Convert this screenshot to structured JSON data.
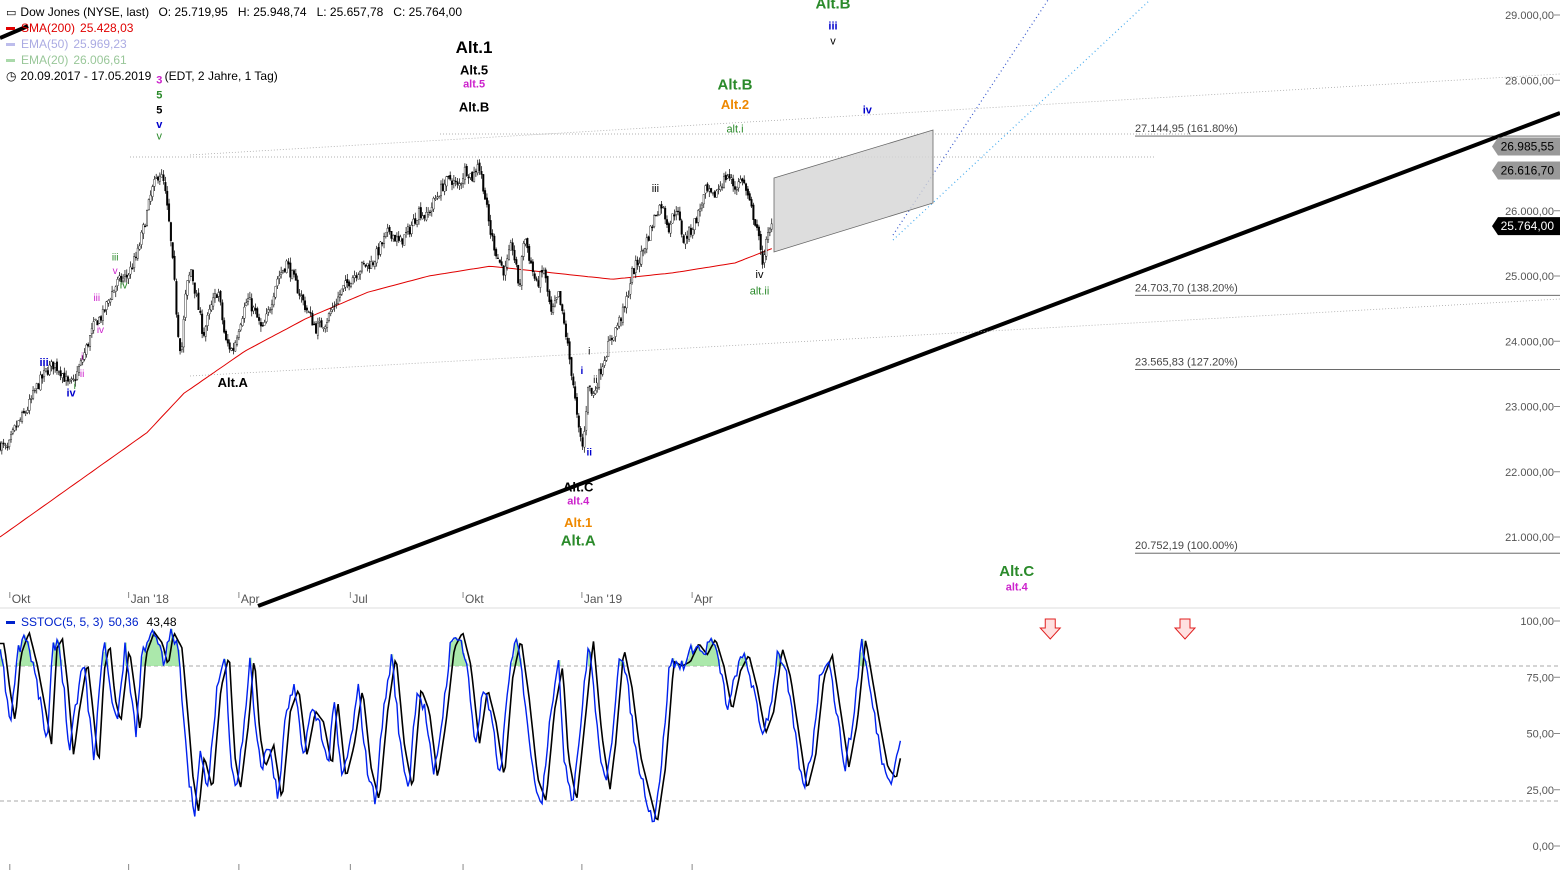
{
  "header": {
    "instrument": "Dow Jones (NYSE, last)",
    "ohlc": "O: 25.719,95   H: 25.948,74   L: 25.657,78   C: 25.764,00",
    "range": "20.09.2017 - 17.05.2019    (EDT, 2 Jahre, 1 Tag)",
    "indicators": [
      {
        "label": "SMA(200)",
        "value": "25.428,03",
        "color": "#e00000",
        "dim": false
      },
      {
        "label": "EMA(50)",
        "value": "25.969,23",
        "color": "#8888dd",
        "dim": true
      },
      {
        "label": "EMA(20)",
        "value": "26.006,61",
        "color": "#66bb66",
        "dim": true
      }
    ]
  },
  "price_axis": {
    "ticks": [
      {
        "v": 29000,
        "label": "29.000,00"
      },
      {
        "v": 28000,
        "label": "28.000,00"
      },
      {
        "v": 27000,
        "label": "27.000,00"
      },
      {
        "v": 26000,
        "label": "26.000,00"
      },
      {
        "v": 25000,
        "label": "25.000,00"
      },
      {
        "v": 24000,
        "label": "24.000,00"
      },
      {
        "v": 23000,
        "label": "23.000,00"
      },
      {
        "v": 22000,
        "label": "22.000,00"
      },
      {
        "v": 21000,
        "label": "21.000,00"
      }
    ],
    "badges": [
      {
        "v": 26985.55,
        "label": "26.985,55",
        "bg": "#999999",
        "fg": "#000000"
      },
      {
        "v": 26616.7,
        "label": "26.616,70",
        "bg": "#999999",
        "fg": "#000000"
      },
      {
        "v": 25764.0,
        "label": "25.764,00",
        "bg": "#000000",
        "fg": "#ffffff"
      }
    ]
  },
  "fibs": [
    {
      "v": 27144.95,
      "label": "27.144,95 (161.80%)"
    },
    {
      "v": 24703.7,
      "label": "24.703,70 (138.20%)"
    },
    {
      "v": 23565.83,
      "label": "23.565,83 (127.20%)"
    },
    {
      "v": 20752.19,
      "label": "20.752,19 (100.00%)"
    }
  ],
  "x_axis": {
    "labels": [
      {
        "day": 8,
        "label": "Okt"
      },
      {
        "day": 105,
        "label": "Jan '18"
      },
      {
        "day": 195,
        "label": "Apr"
      },
      {
        "day": 286,
        "label": "Jul"
      },
      {
        "day": 378,
        "label": "Okt"
      },
      {
        "day": 475,
        "label": "Jan '19"
      },
      {
        "day": 565,
        "label": "Apr"
      }
    ]
  },
  "oscillator": {
    "label": "SSTOC(5, 5, 3)",
    "value1": "50,36",
    "value2": "43,48",
    "ticks": [
      {
        "v": 100,
        "label": "100,00"
      },
      {
        "v": 75,
        "label": "75,00"
      },
      {
        "v": 50,
        "label": "50,00"
      },
      {
        "v": 25,
        "label": "25,00"
      },
      {
        "v": 0,
        "label": "0,00"
      }
    ],
    "overbought": 80,
    "oversold": 20
  },
  "waves": [
    {
      "day": 130,
      "v": 27950,
      "text": "3",
      "color": "#cc22cc",
      "size": 11,
      "bold": true
    },
    {
      "day": 130,
      "v": 27720,
      "text": "5",
      "color": "#2a8a2a",
      "size": 11,
      "bold": true
    },
    {
      "day": 130,
      "v": 27490,
      "text": "5",
      "color": "#000000",
      "size": 11,
      "bold": true
    },
    {
      "day": 130,
      "v": 27270,
      "text": "v",
      "color": "#0000cc",
      "size": 11,
      "bold": true
    },
    {
      "day": 130,
      "v": 27090,
      "text": "v",
      "color": "#2a8a2a",
      "size": 11,
      "bold": false
    },
    {
      "day": 387,
      "v": 28420,
      "text": "Alt.1",
      "color": "#000000",
      "size": 17,
      "bold": true
    },
    {
      "day": 387,
      "v": 28090,
      "text": "Alt.5",
      "color": "#000000",
      "size": 13,
      "bold": true
    },
    {
      "day": 387,
      "v": 27890,
      "text": "alt.5",
      "color": "#cc22cc",
      "size": 11,
      "bold": true
    },
    {
      "day": 387,
      "v": 27520,
      "text": "Alt.B",
      "color": "#000000",
      "size": 13,
      "bold": true
    },
    {
      "day": 190,
      "v": 23300,
      "text": "Alt.A",
      "color": "#000000",
      "size": 13,
      "bold": true
    },
    {
      "day": 472,
      "v": 21700,
      "text": "Alt.C",
      "color": "#000000",
      "size": 13,
      "bold": true
    },
    {
      "day": 472,
      "v": 21500,
      "text": "alt.4",
      "color": "#cc22cc",
      "size": 11,
      "bold": true
    },
    {
      "day": 472,
      "v": 21150,
      "text": "Alt.1",
      "color": "#ee8800",
      "size": 13,
      "bold": true
    },
    {
      "day": 472,
      "v": 20870,
      "text": "Alt.A",
      "color": "#2a8a2a",
      "size": 15,
      "bold": true
    },
    {
      "day": 600,
      "v": 27860,
      "text": "Alt.B",
      "color": "#2a8a2a",
      "size": 15,
      "bold": true
    },
    {
      "day": 600,
      "v": 27560,
      "text": "Alt.2",
      "color": "#ee8800",
      "size": 13,
      "bold": true
    },
    {
      "day": 600,
      "v": 27200,
      "text": "alt.i",
      "color": "#2a8a2a",
      "size": 11,
      "bold": false
    },
    {
      "day": 535,
      "v": 26290,
      "text": "iii",
      "color": "#000000",
      "size": 11,
      "bold": false
    },
    {
      "day": 620,
      "v": 24970,
      "text": "iv",
      "color": "#000000",
      "size": 11,
      "bold": false
    },
    {
      "day": 620,
      "v": 24720,
      "text": "alt.ii",
      "color": "#2a8a2a",
      "size": 11,
      "bold": false
    },
    {
      "day": 680,
      "v": 29100,
      "text": "Alt.B",
      "color": "#2a8a2a",
      "size": 15,
      "bold": true
    },
    {
      "day": 680,
      "v": 28780,
      "text": "iii",
      "color": "#0000cc",
      "size": 11,
      "bold": true
    },
    {
      "day": 680,
      "v": 28550,
      "text": "v",
      "color": "#000000",
      "size": 11,
      "bold": false
    },
    {
      "day": 708,
      "v": 27490,
      "text": "iv",
      "color": "#0000cc",
      "size": 11,
      "bold": true
    },
    {
      "day": 830,
      "v": 20400,
      "text": "Alt.C",
      "color": "#2a8a2a",
      "size": 15,
      "bold": true
    },
    {
      "day": 830,
      "v": 20180,
      "text": "alt.4",
      "color": "#cc22cc",
      "size": 11,
      "bold": true
    },
    {
      "day": 36,
      "v": 23620,
      "text": "iii",
      "color": "#0000cc",
      "size": 11,
      "bold": true
    },
    {
      "day": 58,
      "v": 23150,
      "text": "iv",
      "color": "#0000cc",
      "size": 11,
      "bold": true
    },
    {
      "day": 61,
      "v": 23270,
      "text": "i",
      "color": "#2a8a2a",
      "size": 10,
      "bold": false
    },
    {
      "day": 67,
      "v": 23450,
      "text": "ii",
      "color": "#cc22cc",
      "size": 10,
      "bold": false
    },
    {
      "day": 67,
      "v": 23710,
      "text": "i",
      "color": "#cc22cc",
      "size": 10,
      "bold": false
    },
    {
      "day": 79,
      "v": 24620,
      "text": "iii",
      "color": "#cc22cc",
      "size": 10,
      "bold": false
    },
    {
      "day": 82,
      "v": 24130,
      "text": "iv",
      "color": "#cc22cc",
      "size": 10,
      "bold": false
    },
    {
      "day": 94,
      "v": 25240,
      "text": "iii",
      "color": "#2a8a2a",
      "size": 10,
      "bold": false
    },
    {
      "day": 94,
      "v": 25030,
      "text": "v",
      "color": "#cc22cc",
      "size": 10,
      "bold": false
    },
    {
      "day": 101,
      "v": 24810,
      "text": "iv",
      "color": "#2a8a2a",
      "size": 11,
      "bold": false
    },
    {
      "day": 481,
      "v": 23800,
      "text": "i",
      "color": "#000000",
      "size": 10,
      "bold": false
    },
    {
      "day": 486,
      "v": 23360,
      "text": "ii",
      "color": "#000000",
      "size": 10,
      "bold": false
    },
    {
      "day": 475,
      "v": 23500,
      "text": "i",
      "color": "#0000cc",
      "size": 10,
      "bold": true
    },
    {
      "day": 481,
      "v": 22250,
      "text": "ii",
      "color": "#0000cc",
      "size": 10,
      "bold": true
    }
  ],
  "arrows": [
    {
      "day": 730
    },
    {
      "day": 840
    }
  ]
}
